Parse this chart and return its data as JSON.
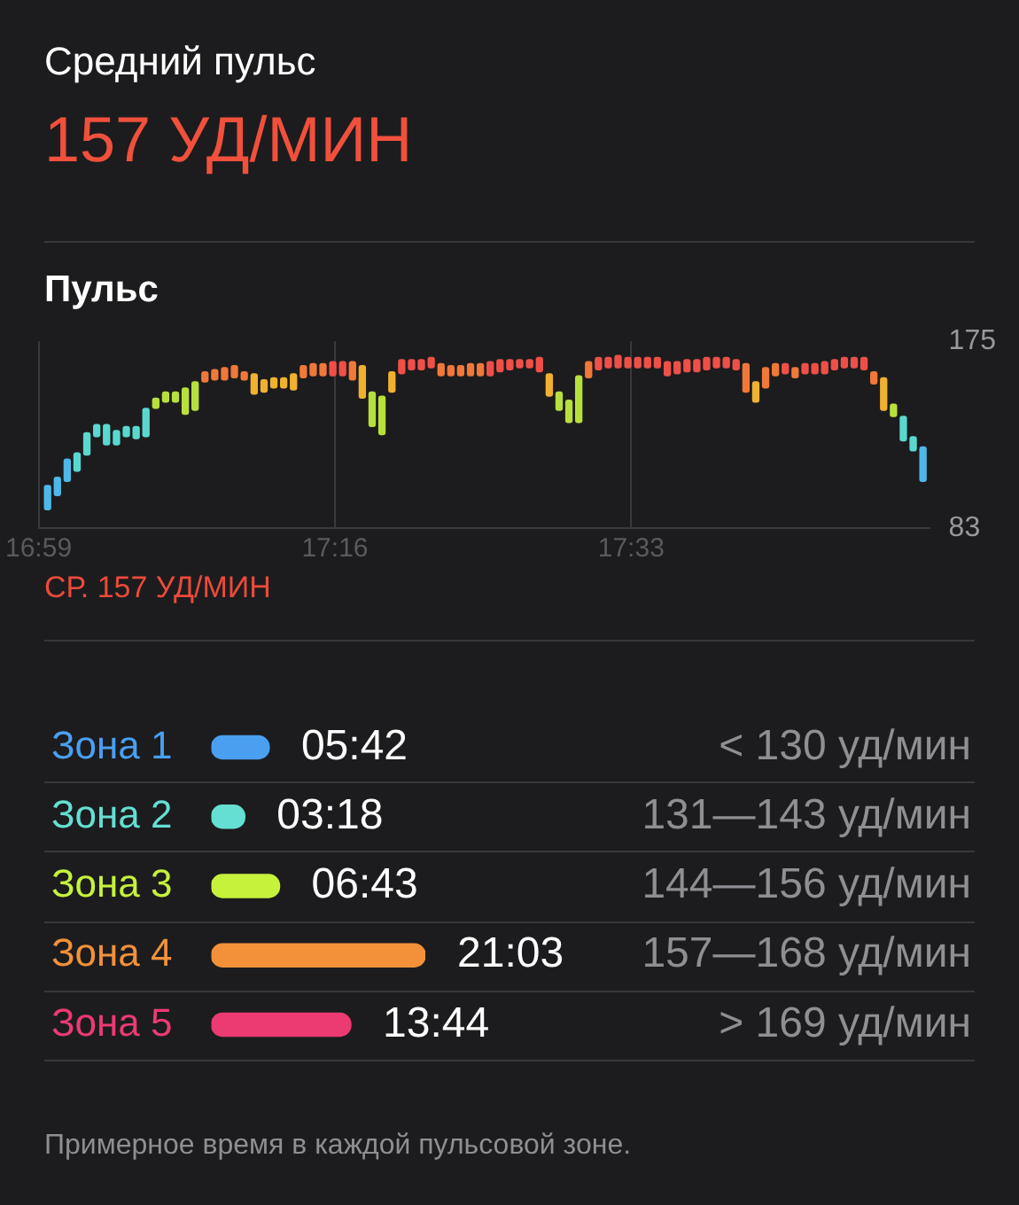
{
  "chart_data": [
    {
      "type": "bar",
      "title": "Средний пульс",
      "subtitle": "157 УД/МИН",
      "annotations": [
        "Пульс",
        "СР. 157 УД/МИН"
      ],
      "x": [
        16.9919,
        17.0013,
        17.0107,
        17.0201,
        17.0295,
        17.0389,
        17.0483,
        17.0578,
        17.0672,
        17.0766,
        17.086,
        17.0954,
        17.1048,
        17.1142,
        17.1236,
        17.133,
        17.1424,
        17.1518,
        17.1612,
        17.1706,
        17.18,
        17.1895,
        17.1989,
        17.2083,
        17.2177,
        17.2271,
        17.2365,
        17.2459,
        17.2553,
        17.2647,
        17.2741,
        17.2835,
        17.2929,
        17.3023,
        17.3117,
        17.3212,
        17.3306,
        17.34,
        17.3494,
        17.3588,
        17.3682,
        17.3776,
        17.387,
        17.3964,
        17.4058,
        17.4152,
        17.4246,
        17.434,
        17.4434,
        17.4529,
        17.4623,
        17.4717,
        17.4811,
        17.4905,
        17.4999,
        17.5093,
        17.5187,
        17.5281,
        17.5375,
        17.5469,
        17.5563,
        17.5657,
        17.5751,
        17.5846,
        17.594,
        17.6034,
        17.6128,
        17.6222,
        17.6316,
        17.641,
        17.6504,
        17.6598,
        17.6692,
        17.6786,
        17.688,
        17.6974,
        17.7068,
        17.7163,
        17.7257,
        17.7351,
        17.7445,
        17.7539,
        17.7633,
        17.7727,
        17.7821,
        17.7915,
        17.8009,
        17.8103,
        17.8197,
        17.8291
      ],
      "base": [
        92,
        99,
        106,
        111,
        119,
        128,
        124,
        124,
        128,
        127,
        128,
        142,
        145,
        145,
        139,
        141,
        155,
        156,
        156,
        157,
        156,
        149,
        150,
        152,
        152,
        151,
        157,
        158,
        158,
        158,
        158,
        156,
        147,
        133,
        129,
        150,
        159,
        161,
        161,
        162,
        158,
        158,
        158,
        158,
        158,
        158,
        160,
        161,
        162,
        162,
        160,
        148,
        141,
        135,
        135,
        157,
        161,
        162,
        162,
        162,
        162,
        162,
        162,
        158,
        159,
        160,
        160,
        161,
        162,
        162,
        161,
        150,
        145,
        152,
        158,
        159,
        157,
        159,
        159,
        159,
        161,
        162,
        162,
        161,
        154,
        141,
        138,
        126,
        121,
        106
      ],
      "values": [
        12,
        9,
        11,
        9,
        11,
        6,
        10,
        7,
        5,
        6,
        14,
        5,
        5,
        5,
        13,
        14,
        5,
        5,
        6,
        6,
        4,
        10,
        6,
        5,
        5,
        8,
        6,
        6,
        6,
        7,
        7,
        9,
        16,
        17,
        19,
        10,
        7,
        5,
        5,
        5,
        6,
        5,
        5,
        6,
        6,
        7,
        6,
        5,
        4,
        4,
        7,
        11,
        9,
        11,
        23,
        8,
        6,
        5,
        6,
        5,
        5,
        5,
        5,
        7,
        6,
        6,
        6,
        6,
        5,
        5,
        5,
        14,
        10,
        10,
        6,
        5,
        5,
        5,
        5,
        6,
        5,
        5,
        5,
        6,
        6,
        16,
        6,
        12,
        7,
        17
      ],
      "colors": [
        "#4fb8e8",
        "#4fb8e8",
        "#4fb8e8",
        "#5ad8d0",
        "#5ad8d0",
        "#5ad8d0",
        "#5ad8d0",
        "#5ad8d0",
        "#5ad8d0",
        "#5ad8d0",
        "#5ad8d0",
        "#b8e03c",
        "#b8e03c",
        "#b8e03c",
        "#b8e03c",
        "#b8e03c",
        "#f07838",
        "#f07838",
        "#f07838",
        "#f07838",
        "#f07838",
        "#f0b030",
        "#f0b030",
        "#f0b030",
        "#f0b030",
        "#f0b030",
        "#f07838",
        "#f07838",
        "#f07838",
        "#ee5048",
        "#ee5048",
        "#f07838",
        "#f0b030",
        "#b8e03c",
        "#b8e03c",
        "#f0b030",
        "#ee5048",
        "#ee5048",
        "#ee5048",
        "#ee5048",
        "#f07838",
        "#f07838",
        "#f07838",
        "#f07838",
        "#f07838",
        "#ee5048",
        "#ee5048",
        "#ee5048",
        "#ee5048",
        "#ee5048",
        "#ee5048",
        "#f0b030",
        "#b8e03c",
        "#b8e03c",
        "#b8e03c",
        "#f07838",
        "#ee5048",
        "#ee5048",
        "#ee5048",
        "#ee5048",
        "#ee5048",
        "#ee5048",
        "#ee5048",
        "#ee5048",
        "#ee5048",
        "#ee5048",
        "#ee5048",
        "#ee5048",
        "#ee5048",
        "#ee5048",
        "#ee5048",
        "#f07838",
        "#f0b030",
        "#f07838",
        "#f07838",
        "#ee5048",
        "#f07838",
        "#ee5048",
        "#ee5048",
        "#ee5048",
        "#ee5048",
        "#ee5048",
        "#ee5048",
        "#ee5048",
        "#f07838",
        "#f0b030",
        "#b8e03c",
        "#5ad8d0",
        "#5ad8d0",
        "#4fb8e8"
      ],
      "xlim": [
        16.9833,
        17.835
      ],
      "xticks": [
        {
          "value": 16.9833,
          "label": "16:59"
        },
        {
          "value": 17.2667,
          "label": "17:16"
        },
        {
          "value": 17.55,
          "label": "17:33"
        }
      ],
      "ylim": [
        83,
        175
      ],
      "yticks": [
        83,
        175
      ],
      "grid": "x"
    },
    {
      "type": "bar",
      "orientation": "horizontal",
      "categories": [
        "Зона 1",
        "Зона 2",
        "Зона 3",
        "Зона 4",
        "Зона 5"
      ],
      "values": [
        5.7,
        3.3,
        6.717,
        21.05,
        13.733
      ],
      "value_labels": [
        "05:42",
        "03:18",
        "06:43",
        "21:03",
        "13:44"
      ],
      "colors": [
        "#4a9ff0",
        "#64dfd2",
        "#c6f23c",
        "#f2913a",
        "#ec3a72"
      ],
      "y2_categories": [
        "< 130 уд/мин",
        "131—143 уд/мин",
        "144—156 уд/мин",
        "157—168 уд/мин",
        "> 169 уд/мин"
      ],
      "annotations": [
        "Примерное время в каждой пульсовой зоне."
      ],
      "tick_labels": "y"
    }
  ]
}
